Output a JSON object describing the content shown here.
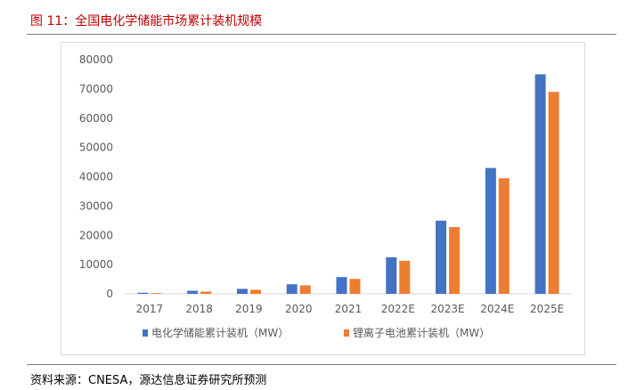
{
  "figure": {
    "title": "图 11：全国电化学储能市场累计装机规模",
    "source": "资料来源：CNESA，源达信息证券研究所预测"
  },
  "colors": {
    "title": "#c00000",
    "series_blue": "#4472c4",
    "series_orange": "#ed7d31",
    "axis_text": "#595959"
  },
  "chart_data": {
    "type": "bar",
    "title": "",
    "xlabel": "",
    "ylabel": "",
    "ylim": [
      0,
      80000
    ],
    "y_ticks": [
      0,
      10000,
      20000,
      30000,
      40000,
      50000,
      60000,
      70000,
      80000
    ],
    "categories": [
      "2017",
      "2018",
      "2019",
      "2020",
      "2021",
      "2022E",
      "2023E",
      "2024E",
      "2025E"
    ],
    "series": [
      {
        "name": "电化学储能累计装机（MW）",
        "values": [
          390,
          1070,
          1710,
          3270,
          5730,
          12500,
          25000,
          43000,
          75000
        ]
      },
      {
        "name": "锂离子电池累计装机（MW）",
        "values": [
          250,
          760,
          1380,
          2900,
          5110,
          11300,
          22800,
          39500,
          69000
        ]
      }
    ],
    "legend_position": "bottom"
  }
}
